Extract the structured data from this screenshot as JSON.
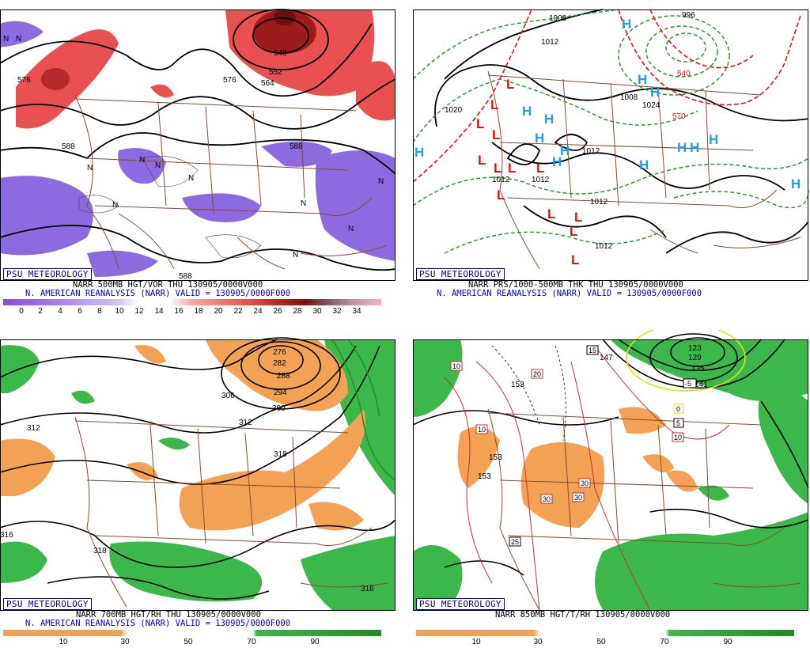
{
  "badge": "PSU METEOROLOGY",
  "panels": [
    {
      "caption_line1": "NARR 500MB HGT/VOR THU 130905/0000V000",
      "caption_line2": "N. AMERICAN REANALYSIS (NARR) VALID = 130905/0000F000",
      "colorbar_ticks": [
        "0",
        "2",
        "4",
        "6",
        "8",
        "10",
        "12",
        "14",
        "16",
        "18",
        "20",
        "22",
        "24",
        "26",
        "28",
        "30",
        "32",
        "34"
      ],
      "contour_labels": [
        "576",
        "540",
        "552",
        "564",
        "576",
        "588",
        "588",
        "588"
      ],
      "map_letters": [
        "N",
        "N",
        "N",
        "N",
        "N",
        "N",
        "N",
        "N",
        "N",
        "N",
        "N"
      ]
    },
    {
      "caption_line1": "NARR PRS/1000-500MB THK THU 130905/0000V000",
      "caption_line2": "N. AMERICAN REANALYSIS (NARR) VALID = 130905/0000F000",
      "contour_labels": [
        "1008",
        "1012",
        "1020",
        "996",
        "1008",
        "1012",
        "1012",
        "1012",
        "540",
        "570",
        "1024",
        "1012",
        "1012"
      ],
      "h_labels": [
        "H",
        "H",
        "H",
        "H",
        "H",
        "H",
        "H",
        "H",
        "H",
        "H",
        "H",
        "H",
        "H",
        "H"
      ],
      "l_labels": [
        "L",
        "L",
        "L",
        "L",
        "L",
        "L",
        "L",
        "L",
        "L",
        "L",
        "L",
        "L",
        "L"
      ]
    },
    {
      "caption_line1": "NARR 700MB HGT/RH THU 130905/0000V000",
      "caption_line2": "N. AMERICAN REANALYSIS (NARR) VALID = 130905/0000F000",
      "colorbar_ticks": [
        "10",
        "30",
        "50",
        "70",
        "90"
      ],
      "contour_labels": [
        "276",
        "282",
        "288",
        "294",
        "300",
        "306",
        "312",
        "312",
        "318",
        "316",
        "318",
        "318"
      ]
    },
    {
      "caption_line1": "NARR 850MB HGT/T/RH 130905/0000V000",
      "colorbar_ticks": [
        "10",
        "30",
        "50",
        "70",
        "90"
      ],
      "contour_labels": [
        "147",
        "153",
        "153",
        "153",
        "123",
        "129",
        "135",
        "141"
      ],
      "temp_boxes": [
        "15",
        "10",
        "20",
        "10",
        "30",
        "30",
        "30",
        "25",
        "5",
        "-5",
        "0",
        "10"
      ]
    }
  ],
  "colors": {
    "badge": "#000080",
    "caption_blue": "#0000cc",
    "map_lines": "#8b4a2b",
    "vort_purple": "#8c6be0",
    "vort_red": "#e8514f",
    "dry_orange": "#f2a155",
    "moist_green": "#3cb84a",
    "high_blue": "#1fa0e0",
    "low_red": "#e01010"
  }
}
